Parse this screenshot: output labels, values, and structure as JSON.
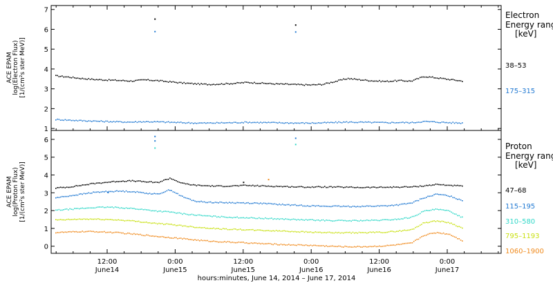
{
  "chart_data": [
    {
      "type": "scatter",
      "title": "",
      "ylabel_lines": [
        "ACE EPAM",
        "log(Electron Flux)",
        "[1/(cm²s ster MeV)]"
      ],
      "ylim": [
        0.9,
        7.2
      ],
      "yticks": [
        1,
        2,
        3,
        4,
        5,
        6,
        7
      ],
      "legend_title_lines": [
        "Electron",
        "Energy ranges",
        "[keV]"
      ],
      "legend_placement": "right",
      "series": [
        {
          "name": "38–53",
          "color": "#000000",
          "values": [
            3.68,
            3.62,
            3.55,
            3.5,
            3.47,
            3.45,
            3.42,
            3.48,
            3.44,
            3.38,
            3.32,
            3.28,
            3.25,
            3.27,
            3.3,
            3.35,
            3.32,
            3.28,
            3.26,
            3.24,
            3.22,
            3.25,
            3.4,
            3.55,
            3.48,
            3.43,
            3.4,
            3.44,
            3.42,
            3.65,
            3.58,
            3.5,
            3.42
          ]
        },
        {
          "name": "175–315",
          "color": "#1f78d2",
          "values": [
            1.48,
            1.45,
            1.42,
            1.4,
            1.38,
            1.36,
            1.35,
            1.37,
            1.36,
            1.34,
            1.32,
            1.3,
            1.3,
            1.31,
            1.32,
            1.34,
            1.33,
            1.32,
            1.31,
            1.3,
            1.3,
            1.31,
            1.33,
            1.35,
            1.34,
            1.33,
            1.32,
            1.33,
            1.32,
            1.38,
            1.35,
            1.32,
            1.3
          ]
        }
      ],
      "outliers": [
        {
          "t": 0.19,
          "y": 6.55,
          "color": "#000000"
        },
        {
          "t": 0.19,
          "y": 5.92,
          "color": "#1f78d2"
        },
        {
          "t": 0.46,
          "y": 6.25,
          "color": "#000000"
        },
        {
          "t": 0.46,
          "y": 5.9,
          "color": "#1f78d2"
        }
      ]
    },
    {
      "type": "scatter",
      "title": "",
      "ylabel_lines": [
        "ACE EPAM",
        "log(Proton Flux)",
        "[1/(cm²s ster MeV)]"
      ],
      "ylim": [
        -0.4,
        6.5
      ],
      "yticks": [
        0,
        1,
        2,
        3,
        4,
        5,
        6
      ],
      "legend_title_lines": [
        "Proton",
        "Energy ranges",
        "[keV]"
      ],
      "legend_placement": "right",
      "series": [
        {
          "name": "47–68",
          "color": "#000000",
          "values": [
            3.3,
            3.35,
            3.45,
            3.55,
            3.62,
            3.68,
            3.7,
            3.65,
            3.6,
            3.85,
            3.55,
            3.45,
            3.42,
            3.4,
            3.42,
            3.44,
            3.42,
            3.4,
            3.38,
            3.36,
            3.35,
            3.36,
            3.35,
            3.34,
            3.33,
            3.33,
            3.34,
            3.35,
            3.36,
            3.42,
            3.5,
            3.45,
            3.4
          ]
        },
        {
          "name": "115–195",
          "color": "#1f78d2",
          "values": [
            2.75,
            2.85,
            2.95,
            3.05,
            3.1,
            3.12,
            3.1,
            3.02,
            2.95,
            3.2,
            2.8,
            2.55,
            2.5,
            2.48,
            2.47,
            2.46,
            2.44,
            2.4,
            2.36,
            2.33,
            2.3,
            2.28,
            2.27,
            2.26,
            2.27,
            2.28,
            2.3,
            2.35,
            2.45,
            2.75,
            2.95,
            2.85,
            2.6
          ]
        },
        {
          "name": "310–580",
          "color": "#30d8c8",
          "values": [
            2.05,
            2.1,
            2.15,
            2.2,
            2.22,
            2.2,
            2.15,
            2.08,
            2.0,
            1.95,
            1.85,
            1.78,
            1.72,
            1.68,
            1.65,
            1.63,
            1.6,
            1.58,
            1.55,
            1.52,
            1.5,
            1.48,
            1.47,
            1.46,
            1.47,
            1.48,
            1.5,
            1.55,
            1.65,
            2.0,
            2.1,
            2.0,
            1.65
          ]
        },
        {
          "name": "795–1193",
          "color": "#c8e010",
          "values": [
            1.5,
            1.52,
            1.55,
            1.55,
            1.53,
            1.5,
            1.45,
            1.38,
            1.3,
            1.25,
            1.18,
            1.1,
            1.05,
            1.0,
            0.98,
            0.95,
            0.92,
            0.9,
            0.88,
            0.85,
            0.82,
            0.8,
            0.78,
            0.78,
            0.79,
            0.8,
            0.82,
            0.88,
            0.95,
            1.35,
            1.45,
            1.35,
            1.05
          ]
        },
        {
          "name": "1060–1900",
          "color": "#f08a1c",
          "values": [
            0.8,
            0.82,
            0.85,
            0.85,
            0.82,
            0.78,
            0.72,
            0.65,
            0.58,
            0.52,
            0.45,
            0.38,
            0.32,
            0.28,
            0.25,
            0.22,
            0.18,
            0.15,
            0.12,
            0.1,
            0.08,
            0.05,
            0.02,
            0.0,
            0.0,
            0.02,
            0.05,
            0.12,
            0.2,
            0.65,
            0.8,
            0.7,
            0.35
          ]
        }
      ],
      "outliers": [
        {
          "t": 0.19,
          "y": 5.95,
          "color": "#1f78d2"
        },
        {
          "t": 0.19,
          "y": 5.55,
          "color": "#30d8c8"
        },
        {
          "t": 0.19,
          "y": 6.2,
          "color": "#1f78d2"
        },
        {
          "t": 0.46,
          "y": 6.1,
          "color": "#1f78d2"
        },
        {
          "t": 0.46,
          "y": 5.75,
          "color": "#30d8c8"
        },
        {
          "t": 0.408,
          "y": 3.78,
          "color": "#f08a1c"
        },
        {
          "t": 0.36,
          "y": 3.62,
          "color": "#000000"
        },
        {
          "t": 0.1,
          "y": 3.05,
          "color": "#1f78d2"
        }
      ]
    }
  ],
  "x_axis": {
    "ticks": [
      {
        "label": "12:00",
        "date": "June14"
      },
      {
        "label": "0:00",
        "date": "June15"
      },
      {
        "label": "12:00",
        "date": "June15"
      },
      {
        "label": "0:00",
        "date": "June16"
      },
      {
        "label": "12:00",
        "date": "June16"
      },
      {
        "label": "0:00",
        "date": "June17"
      }
    ],
    "title": "hours:minutes, June 14, 2014 – June 17, 2014"
  }
}
